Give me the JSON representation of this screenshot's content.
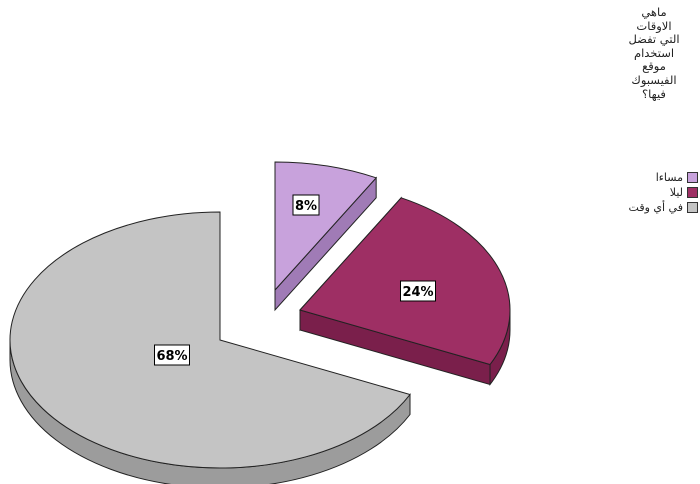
{
  "chart_data": {
    "type": "pie",
    "title_lines": [
      "ماهي",
      "الاوقات",
      "التي تفضل",
      "استخدام",
      "موقع",
      "الفيسبوك",
      "فيها؟"
    ],
    "slices": [
      {
        "name": "مساءا",
        "value": 8,
        "label": "8%",
        "color": "#c8a2dc",
        "side": "#a07bb6",
        "exploded": true
      },
      {
        "name": "ليلا",
        "value": 24,
        "label": "24%",
        "color": "#9e2f64",
        "side": "#7a1f4b",
        "exploded": true
      },
      {
        "name": "في أي وقت",
        "value": 68,
        "label": "68%",
        "color": "#c4c4c4",
        "side": "#9c9c9c",
        "exploded": false
      }
    ],
    "legend_position": "right"
  }
}
